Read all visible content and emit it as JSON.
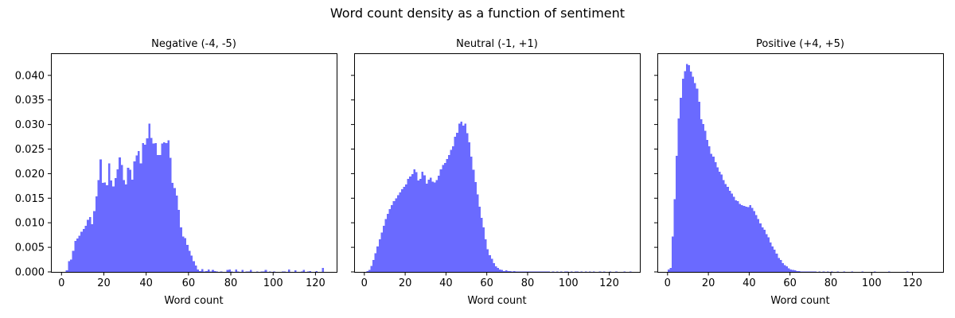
{
  "figure": {
    "title": "Word count density as a function of sentiment",
    "bar_color": "#6a6aff"
  },
  "chart_data": [
    {
      "type": "bar",
      "title": "Negative (-4, -5)",
      "xlabel": "Word count",
      "ylabel": "",
      "xlim": [
        -5,
        130
      ],
      "ylim": [
        0,
        0.0445
      ],
      "xticks": [
        "0",
        "20",
        "40",
        "60",
        "80",
        "100",
        "120"
      ],
      "yticks": [
        "0.000",
        "0.005",
        "0.010",
        "0.015",
        "0.020",
        "0.025",
        "0.030",
        "0.035",
        "0.040"
      ],
      "grid": false,
      "bins": {
        "start": 2,
        "width": 1
      },
      "values": [
        0.0003,
        0.0022,
        0.0025,
        0.0043,
        0.0063,
        0.0068,
        0.0074,
        0.0082,
        0.0087,
        0.0094,
        0.0106,
        0.0112,
        0.0097,
        0.0124,
        0.0154,
        0.0187,
        0.0229,
        0.0181,
        0.0182,
        0.0176,
        0.0221,
        0.0186,
        0.0174,
        0.0191,
        0.0209,
        0.0233,
        0.0218,
        0.0187,
        0.0178,
        0.0212,
        0.0208,
        0.0188,
        0.0225,
        0.0237,
        0.0246,
        0.0221,
        0.0262,
        0.0259,
        0.0272,
        0.0302,
        0.0273,
        0.0261,
        0.0262,
        0.0238,
        0.0238,
        0.0261,
        0.0264,
        0.0262,
        0.0268,
        0.0232,
        0.0181,
        0.0171,
        0.0155,
        0.0126,
        0.0091,
        0.0072,
        0.0069,
        0.0055,
        0.0043,
        0.0033,
        0.0022,
        0.0013,
        0.0005,
        0.0002,
        0.0006,
        0.0001,
        0.0002,
        0.0005,
        0.0001,
        0.0004,
        0.0002,
        0.0001,
        0.0,
        0.0001,
        0.0,
        0.0,
        0.0004,
        0.0005,
        0.0001,
        0.0,
        0.0005,
        0.0001,
        0.0,
        0.0004,
        0.0,
        0.0001,
        0.0001,
        0.0004,
        0.0,
        0.0,
        0.0001,
        0.0,
        0.0001,
        0.0001,
        0.0004,
        0.0,
        0.0001,
        0.0,
        0.0001,
        0.0,
        0.0,
        0.0,
        0.0001,
        0.0001,
        0.0,
        0.0005,
        0.0,
        0.0,
        0.0003,
        0.0,
        0.0,
        0.0001,
        0.0004,
        0.0,
        0.0001,
        0.0002,
        0.0,
        0.0,
        0.0002,
        0.0,
        0.0,
        0.0008,
        0.0
      ]
    },
    {
      "type": "bar",
      "title": "Neutral (-1, +1)",
      "xlabel": "Word count",
      "ylabel": "",
      "xlim": [
        -5,
        135
      ],
      "ylim": [
        0,
        0.0445
      ],
      "xticks": [
        "0",
        "20",
        "40",
        "60",
        "80",
        "100",
        "120"
      ],
      "yticks": [
        "0.000",
        "0.005",
        "0.010",
        "0.015",
        "0.020",
        "0.025",
        "0.030",
        "0.035",
        "0.040"
      ],
      "grid": false,
      "bins": {
        "start": 1,
        "width": 1
      },
      "values": [
        0.0002,
        0.0004,
        0.0012,
        0.0024,
        0.0038,
        0.0052,
        0.0066,
        0.008,
        0.0094,
        0.0108,
        0.0118,
        0.0128,
        0.0136,
        0.0144,
        0.015,
        0.0156,
        0.0162,
        0.0168,
        0.0173,
        0.0178,
        0.0189,
        0.0194,
        0.0199,
        0.0209,
        0.0203,
        0.0186,
        0.0189,
        0.0204,
        0.0197,
        0.018,
        0.0188,
        0.0192,
        0.0184,
        0.0182,
        0.0187,
        0.0196,
        0.0209,
        0.0218,
        0.0222,
        0.023,
        0.0238,
        0.0248,
        0.0256,
        0.0275,
        0.0283,
        0.0302,
        0.0306,
        0.0298,
        0.0302,
        0.0282,
        0.0264,
        0.0235,
        0.0208,
        0.0183,
        0.0158,
        0.0133,
        0.011,
        0.0091,
        0.0066,
        0.0046,
        0.0034,
        0.0027,
        0.0018,
        0.0011,
        0.0008,
        0.0005,
        0.0004,
        0.0002,
        0.0003,
        0.0002,
        0.0002,
        0.0001,
        0.0002,
        0.0001,
        0.0001,
        0.0001,
        0.0001,
        0.0001,
        0.0001,
        0.0001,
        0.0001,
        0.0001,
        0.0001,
        0.0001,
        0.0001,
        0.0001,
        0.0001,
        0.0001,
        0.0001,
        0.0001,
        0.0,
        0.0001,
        0.0,
        0.0001,
        0.0,
        0.0001,
        0.0,
        0.0001,
        0.0001,
        0.0,
        0.0001,
        0.0,
        0.0001,
        0.0001,
        0.0,
        0.0001,
        0.0,
        0.0001,
        0.0,
        0.0001,
        0.0,
        0.0001,
        0.0,
        0.0,
        0.0001,
        0.0,
        0.0001,
        0.0,
        0.0,
        0.0001,
        0.0,
        0.0,
        0.0001,
        0.0,
        0.0,
        0.0,
        0.0001,
        0.0,
        0.0,
        0.0001
      ]
    },
    {
      "type": "bar",
      "title": "Positive (+4, +5)",
      "xlabel": "Word count",
      "ylabel": "",
      "xlim": [
        -5,
        135
      ],
      "ylim": [
        0,
        0.0445
      ],
      "xticks": [
        "0",
        "20",
        "40",
        "60",
        "80",
        "100",
        "120"
      ],
      "yticks": [
        "0.000",
        "0.005",
        "0.010",
        "0.015",
        "0.020",
        "0.025",
        "0.030",
        "0.035",
        "0.040"
      ],
      "grid": false,
      "bins": {
        "start": 0,
        "width": 1
      },
      "values": [
        0.0005,
        0.0008,
        0.0072,
        0.0148,
        0.0236,
        0.0312,
        0.0354,
        0.0393,
        0.0409,
        0.0423,
        0.0421,
        0.0408,
        0.0397,
        0.0384,
        0.0373,
        0.0346,
        0.0311,
        0.0301,
        0.0287,
        0.0269,
        0.0256,
        0.024,
        0.0235,
        0.0223,
        0.0213,
        0.0204,
        0.0198,
        0.0187,
        0.0179,
        0.0173,
        0.0165,
        0.0159,
        0.0153,
        0.0146,
        0.0144,
        0.0138,
        0.0136,
        0.0134,
        0.0133,
        0.0132,
        0.0136,
        0.013,
        0.0124,
        0.0116,
        0.0108,
        0.0099,
        0.0091,
        0.0086,
        0.0077,
        0.007,
        0.006,
        0.0052,
        0.0045,
        0.0037,
        0.0028,
        0.0024,
        0.0018,
        0.0014,
        0.0011,
        0.0007,
        0.0005,
        0.0004,
        0.0003,
        0.0002,
        0.0002,
        0.0001,
        0.0001,
        0.0001,
        0.0001,
        0.0001,
        0.0001,
        0.0001,
        0.0001,
        0.0,
        0.0001,
        0.0,
        0.0001,
        0.0,
        0.0001,
        0.0,
        0.0001,
        0.0,
        0.0,
        0.0001,
        0.0,
        0.0,
        0.0001,
        0.0,
        0.0,
        0.0,
        0.0001,
        0.0,
        0.0,
        0.0,
        0.0,
        0.0001,
        0.0,
        0.0,
        0.0,
        0.0,
        0.0,
        0.0001,
        0.0,
        0.0,
        0.0,
        0.0,
        0.0,
        0.0,
        0.0001,
        0.0,
        0.0,
        0.0,
        0.0,
        0.0,
        0.0,
        0.0,
        0.0,
        0.0001,
        0.0,
        0.0,
        0.0,
        0.0,
        0.0,
        0.0,
        0.0,
        0.0,
        0.0,
        0.0
      ]
    }
  ]
}
